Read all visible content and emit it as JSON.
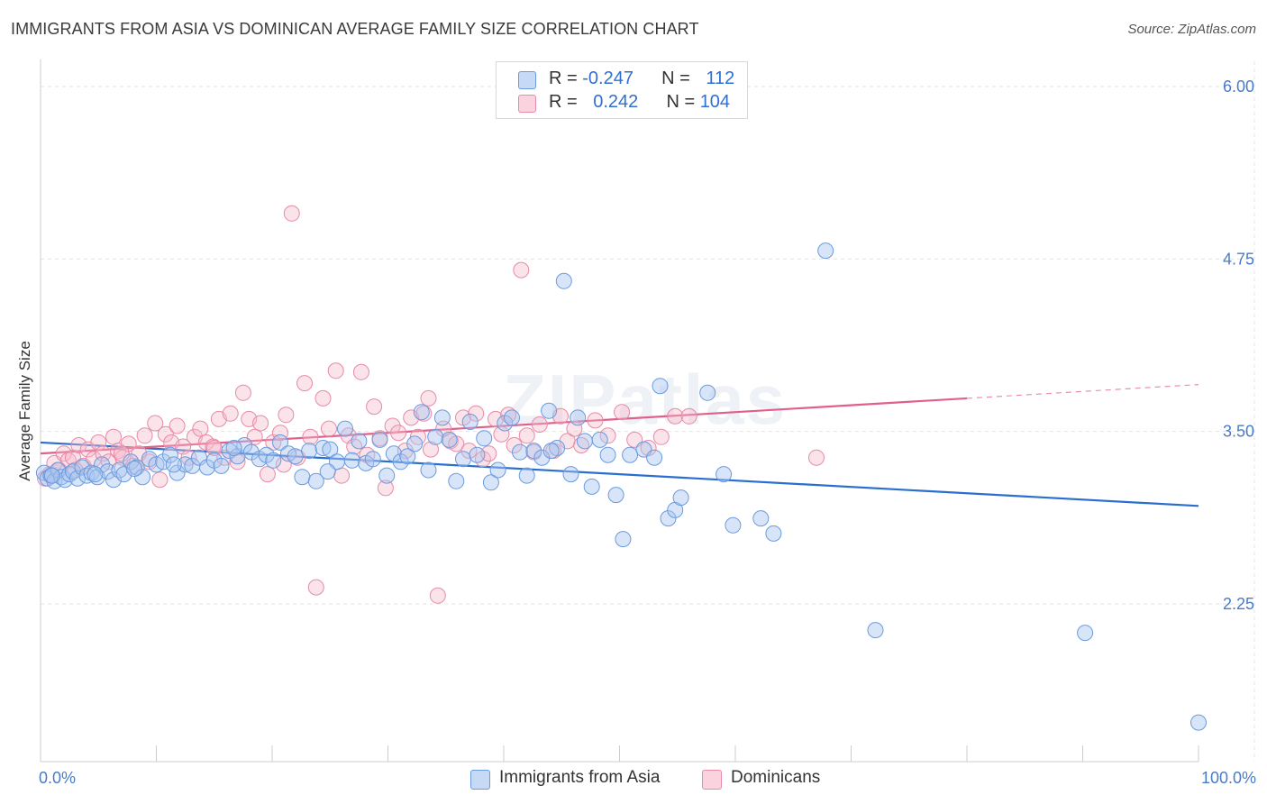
{
  "header": {
    "title": "IMMIGRANTS FROM ASIA VS DOMINICAN AVERAGE FAMILY SIZE CORRELATION CHART",
    "source": "Source: ZipAtlas.com"
  },
  "legend": {
    "rows": [
      {
        "r_label": "R = ",
        "r_value": "-0.247",
        "n_label": "N = ",
        "n_value": "112"
      },
      {
        "r_label": "R = ",
        "r_value": "0.242",
        "n_label": "N = ",
        "n_value": "104"
      }
    ]
  },
  "bottom_legend": [
    "Immigrants from Asia",
    "Dominicans"
  ],
  "watermark": "ZIPatlas",
  "colors": {
    "blue_fill": "#a9c6f0",
    "blue_stroke": "#6a9be0",
    "blue_line": "#2a6fd0",
    "pink_fill": "#f5b8cb",
    "pink_stroke": "#e88aa8",
    "pink_line": "#e0608a",
    "tick_text": "#4a7bc8",
    "grid": "#e3e3e3"
  },
  "chart_data": {
    "type": "scatter",
    "title": "IMMIGRANTS FROM ASIA VS DOMINICAN AVERAGE FAMILY SIZE CORRELATION CHART",
    "xlabel": "",
    "ylabel": "Average Family Size",
    "xlim": [
      0,
      100
    ],
    "ylim": [
      1.0,
      6.25
    ],
    "y_ticks": [
      2.25,
      3.5,
      4.75,
      6.0
    ],
    "y_tick_labels": [
      "2.25",
      "3.50",
      "4.75",
      "6.00"
    ],
    "x_tick_labels": [
      "0.0%",
      "100.0%"
    ],
    "grid": true,
    "legend_position": "top-center",
    "series": [
      {
        "name": "Immigrants from Asia",
        "color": "#6a9be0",
        "trend": {
          "x0": 0,
          "y0": 3.42,
          "x1": 100,
          "y1": 2.96
        },
        "points": [
          [
            0.3,
            3.2
          ],
          [
            0.6,
            3.16
          ],
          [
            0.9,
            3.18
          ],
          [
            1.2,
            3.14
          ],
          [
            1.5,
            3.22
          ],
          [
            1.8,
            3.17
          ],
          [
            2.1,
            3.15
          ],
          [
            2.5,
            3.19
          ],
          [
            2.8,
            3.21
          ],
          [
            3.2,
            3.16
          ],
          [
            3.6,
            3.24
          ],
          [
            4.0,
            3.18
          ],
          [
            4.4,
            3.2
          ],
          [
            4.9,
            3.17
          ],
          [
            5.3,
            3.26
          ],
          [
            5.8,
            3.21
          ],
          [
            6.3,
            3.15
          ],
          [
            6.8,
            3.22
          ],
          [
            7.2,
            3.19
          ],
          [
            7.8,
            3.28
          ],
          [
            8.3,
            3.24
          ],
          [
            8.8,
            3.17
          ],
          [
            9.4,
            3.3
          ],
          [
            10.0,
            3.26
          ],
          [
            10.6,
            3.28
          ],
          [
            11.2,
            3.33
          ],
          [
            11.8,
            3.2
          ],
          [
            12.5,
            3.26
          ],
          [
            13.1,
            3.25
          ],
          [
            13.7,
            3.31
          ],
          [
            14.4,
            3.24
          ],
          [
            15.0,
            3.29
          ],
          [
            15.6,
            3.25
          ],
          [
            16.3,
            3.36
          ],
          [
            17.0,
            3.32
          ],
          [
            17.6,
            3.4
          ],
          [
            18.2,
            3.35
          ],
          [
            18.9,
            3.3
          ],
          [
            19.5,
            3.33
          ],
          [
            20.1,
            3.29
          ],
          [
            20.7,
            3.42
          ],
          [
            21.4,
            3.34
          ],
          [
            22.0,
            3.32
          ],
          [
            22.6,
            3.17
          ],
          [
            23.2,
            3.36
          ],
          [
            23.8,
            3.14
          ],
          [
            24.4,
            3.38
          ],
          [
            25.0,
            3.37
          ],
          [
            25.6,
            3.28
          ],
          [
            26.3,
            3.52
          ],
          [
            26.9,
            3.29
          ],
          [
            27.5,
            3.43
          ],
          [
            28.1,
            3.27
          ],
          [
            28.7,
            3.3
          ],
          [
            29.3,
            3.44
          ],
          [
            29.9,
            3.18
          ],
          [
            30.5,
            3.34
          ],
          [
            31.1,
            3.28
          ],
          [
            31.7,
            3.32
          ],
          [
            32.3,
            3.41
          ],
          [
            32.9,
            3.64
          ],
          [
            33.5,
            3.22
          ],
          [
            34.1,
            3.46
          ],
          [
            34.7,
            3.6
          ],
          [
            35.3,
            3.44
          ],
          [
            35.9,
            3.14
          ],
          [
            36.5,
            3.3
          ],
          [
            37.1,
            3.57
          ],
          [
            37.7,
            3.33
          ],
          [
            38.3,
            3.45
          ],
          [
            38.9,
            3.13
          ],
          [
            39.5,
            3.22
          ],
          [
            40.1,
            3.56
          ],
          [
            40.7,
            3.6
          ],
          [
            41.4,
            3.35
          ],
          [
            42.0,
            3.18
          ],
          [
            42.6,
            3.36
          ],
          [
            43.3,
            3.31
          ],
          [
            43.9,
            3.65
          ],
          [
            44.6,
            3.38
          ],
          [
            45.2,
            4.59
          ],
          [
            45.8,
            3.19
          ],
          [
            46.4,
            3.6
          ],
          [
            47.0,
            3.43
          ],
          [
            47.6,
            3.1
          ],
          [
            48.3,
            3.44
          ],
          [
            49.0,
            3.33
          ],
          [
            49.7,
            3.04
          ],
          [
            50.3,
            2.72
          ],
          [
            50.9,
            3.33
          ],
          [
            52.1,
            3.37
          ],
          [
            53.0,
            3.31
          ],
          [
            53.5,
            3.83
          ],
          [
            54.2,
            2.87
          ],
          [
            54.8,
            2.93
          ],
          [
            55.3,
            3.02
          ],
          [
            57.6,
            3.78
          ],
          [
            59.0,
            3.19
          ],
          [
            59.8,
            2.82
          ],
          [
            62.2,
            2.87
          ],
          [
            63.3,
            2.76
          ],
          [
            67.8,
            4.81
          ],
          [
            72.1,
            2.06
          ],
          [
            90.2,
            2.04
          ],
          [
            100.0,
            1.39
          ],
          [
            44.1,
            3.36
          ],
          [
            24.8,
            3.21
          ],
          [
            16.7,
            3.38
          ],
          [
            11.5,
            3.26
          ],
          [
            8.1,
            3.23
          ],
          [
            4.7,
            3.19
          ],
          [
            1.0,
            3.18
          ]
        ]
      },
      {
        "name": "Dominicans",
        "color": "#e88aa8",
        "trend": {
          "x0": 0,
          "y0": 3.34,
          "x1": 80,
          "y1": 3.74,
          "dash_x1": 100,
          "dash_y1": 3.84
        },
        "points": [
          [
            0.4,
            3.16
          ],
          [
            0.8,
            3.19
          ],
          [
            1.2,
            3.27
          ],
          [
            1.6,
            3.22
          ],
          [
            2.0,
            3.34
          ],
          [
            2.4,
            3.29
          ],
          [
            2.8,
            3.31
          ],
          [
            3.3,
            3.4
          ],
          [
            3.7,
            3.25
          ],
          [
            4.1,
            3.37
          ],
          [
            4.6,
            3.3
          ],
          [
            5.0,
            3.42
          ],
          [
            5.4,
            3.34
          ],
          [
            5.9,
            3.28
          ],
          [
            6.3,
            3.46
          ],
          [
            6.7,
            3.36
          ],
          [
            7.1,
            3.31
          ],
          [
            7.6,
            3.41
          ],
          [
            8.0,
            3.25
          ],
          [
            8.5,
            3.34
          ],
          [
            9.0,
            3.47
          ],
          [
            9.4,
            3.28
          ],
          [
            9.9,
            3.56
          ],
          [
            10.3,
            3.15
          ],
          [
            10.8,
            3.48
          ],
          [
            11.3,
            3.42
          ],
          [
            11.8,
            3.54
          ],
          [
            12.3,
            3.39
          ],
          [
            12.8,
            3.31
          ],
          [
            13.3,
            3.46
          ],
          [
            13.8,
            3.52
          ],
          [
            14.3,
            3.42
          ],
          [
            14.9,
            3.39
          ],
          [
            15.4,
            3.59
          ],
          [
            15.9,
            3.31
          ],
          [
            16.4,
            3.63
          ],
          [
            17.0,
            3.28
          ],
          [
            17.5,
            3.78
          ],
          [
            18.0,
            3.59
          ],
          [
            18.5,
            3.46
          ],
          [
            19.0,
            3.56
          ],
          [
            19.6,
            3.19
          ],
          [
            20.1,
            3.42
          ],
          [
            20.7,
            3.49
          ],
          [
            21.2,
            3.62
          ],
          [
            21.7,
            5.08
          ],
          [
            22.2,
            3.31
          ],
          [
            22.8,
            3.85
          ],
          [
            23.3,
            3.46
          ],
          [
            23.8,
            2.37
          ],
          [
            24.4,
            3.74
          ],
          [
            24.9,
            3.52
          ],
          [
            25.5,
            3.94
          ],
          [
            26.0,
            3.18
          ],
          [
            26.6,
            3.47
          ],
          [
            27.1,
            3.39
          ],
          [
            27.7,
            3.93
          ],
          [
            28.2,
            3.33
          ],
          [
            28.8,
            3.68
          ],
          [
            29.3,
            3.45
          ],
          [
            29.8,
            3.09
          ],
          [
            30.4,
            3.54
          ],
          [
            30.9,
            3.49
          ],
          [
            31.5,
            3.36
          ],
          [
            32.0,
            3.6
          ],
          [
            32.6,
            3.46
          ],
          [
            33.1,
            3.63
          ],
          [
            33.7,
            3.37
          ],
          [
            34.3,
            2.31
          ],
          [
            34.8,
            3.52
          ],
          [
            35.4,
            3.43
          ],
          [
            35.9,
            3.41
          ],
          [
            36.5,
            3.6
          ],
          [
            37.0,
            3.36
          ],
          [
            37.6,
            3.63
          ],
          [
            38.2,
            3.3
          ],
          [
            38.7,
            3.34
          ],
          [
            39.3,
            3.59
          ],
          [
            39.8,
            3.48
          ],
          [
            40.4,
            3.62
          ],
          [
            40.9,
            3.4
          ],
          [
            41.5,
            4.67
          ],
          [
            42.0,
            3.47
          ],
          [
            42.6,
            3.35
          ],
          [
            43.1,
            3.55
          ],
          [
            44.3,
            3.36
          ],
          [
            44.9,
            3.61
          ],
          [
            45.5,
            3.43
          ],
          [
            46.1,
            3.52
          ],
          [
            46.7,
            3.4
          ],
          [
            47.9,
            3.58
          ],
          [
            49.0,
            3.47
          ],
          [
            50.2,
            3.64
          ],
          [
            51.3,
            3.44
          ],
          [
            52.5,
            3.38
          ],
          [
            53.6,
            3.46
          ],
          [
            54.8,
            3.61
          ],
          [
            56.0,
            3.61
          ],
          [
            67.0,
            3.31
          ],
          [
            33.5,
            3.74
          ],
          [
            21.0,
            3.26
          ],
          [
            15.0,
            3.38
          ],
          [
            7.0,
            3.34
          ],
          [
            3.0,
            3.22
          ]
        ]
      }
    ]
  }
}
